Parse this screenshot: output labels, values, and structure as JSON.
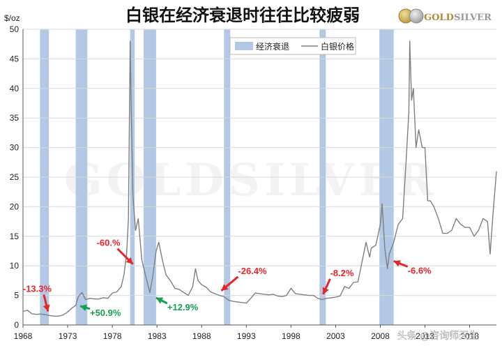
{
  "chart_data": {
    "type": "line",
    "title": "白银在经济衰退时往往比较疲弱",
    "ylabel": "$/oz",
    "xlabel": "",
    "xlim": [
      1968,
      2021
    ],
    "ylim": [
      0,
      50
    ],
    "yticks": [
      0,
      5,
      10,
      15,
      20,
      25,
      30,
      35,
      40,
      45,
      50
    ],
    "xticks": [
      1968,
      1973,
      1978,
      1983,
      1988,
      1993,
      1998,
      2003,
      2008,
      2013,
      2018
    ],
    "grid": "horizontal",
    "legend": {
      "placement": "top-center",
      "entries": [
        {
          "label": "经济衰退",
          "kind": "band",
          "color": "#b3c8e4"
        },
        {
          "label": "白银价格",
          "kind": "line",
          "color": "#7f7f7f"
        }
      ]
    },
    "series": [
      {
        "name": "白银价格",
        "color": "#7f7f7f",
        "x": [
          1968,
          1968.5,
          1969,
          1969.5,
          1970,
          1970.5,
          1971,
          1971.5,
          1972,
          1972.5,
          1973,
          1973.5,
          1973.9,
          1974.2,
          1974.6,
          1975,
          1975.5,
          1976,
          1976.5,
          1977,
          1977.5,
          1978,
          1978.5,
          1979,
          1979.3,
          1979.6,
          1979.8,
          1980.0,
          1980.1,
          1980.3,
          1980.6,
          1980.9,
          1981.3,
          1981.7,
          1982.2,
          1982.5,
          1982.9,
          1983.2,
          1983.6,
          1984,
          1984.5,
          1985,
          1985.5,
          1986,
          1986.5,
          1987,
          1987.3,
          1987.6,
          1988,
          1988.5,
          1989,
          1989.5,
          1990,
          1990.5,
          1991,
          1991.5,
          1992,
          1992.5,
          1993,
          1993.5,
          1994,
          1994.5,
          1995,
          1995.5,
          1996,
          1996.5,
          1997,
          1997.5,
          1998,
          1998.5,
          1999,
          1999.5,
          2000,
          2000.5,
          2001,
          2001.5,
          2002,
          2002.5,
          2003,
          2003.5,
          2004,
          2004.5,
          2005,
          2005.5,
          2006,
          2006.4,
          2006.8,
          2007,
          2007.5,
          2008,
          2008.2,
          2008.5,
          2008.8,
          2009,
          2009.5,
          2010,
          2010.5,
          2010.9,
          2011.2,
          2011.3,
          2011.5,
          2011.7,
          2012,
          2012.3,
          2012.7,
          2013,
          2013.3,
          2013.6,
          2014,
          2014.5,
          2015,
          2015.5,
          2016,
          2016.5,
          2017,
          2017.5,
          2018,
          2018.5,
          2019,
          2019.5,
          2020,
          2020.3,
          2020.6,
          2020.9,
          2021
        ],
        "values": [
          2.3,
          2.5,
          1.9,
          1.8,
          1.85,
          1.75,
          1.6,
          1.5,
          1.5,
          1.7,
          2.2,
          2.9,
          3.3,
          4.8,
          5.5,
          4.3,
          4.5,
          4.4,
          4.4,
          4.6,
          4.5,
          5.4,
          5.6,
          6.5,
          8.5,
          12,
          18,
          48,
          38,
          22,
          16,
          18,
          11,
          8.5,
          5.5,
          8,
          12.5,
          14,
          11,
          8.5,
          7.5,
          6.2,
          6.0,
          5.5,
          5.0,
          6.5,
          9.5,
          7.5,
          6.8,
          6.4,
          5.6,
          5.3,
          5.0,
          4.8,
          4.2,
          4.0,
          3.9,
          3.8,
          3.7,
          4.5,
          5.4,
          5.3,
          5.2,
          5.1,
          5.2,
          4.9,
          4.8,
          5.0,
          6.2,
          5.3,
          5.2,
          5.1,
          5.0,
          5.0,
          4.5,
          4.3,
          4.5,
          4.6,
          4.7,
          4.9,
          6.5,
          6.2,
          7.2,
          7.3,
          11,
          14,
          11.5,
          13,
          13.5,
          17,
          20.5,
          13,
          9.5,
          12,
          14,
          17,
          18,
          28,
          36,
          48,
          38,
          40,
          30,
          33,
          30,
          30,
          21,
          21,
          20,
          18,
          15.5,
          15.5,
          16,
          18,
          17,
          16.5,
          16.5,
          15,
          16,
          18,
          17.5,
          12,
          18.5,
          24,
          26
        ]
      }
    ],
    "recessions": [
      [
        1969.9,
        1970.9
      ],
      [
        1973.9,
        1975.2
      ],
      [
        1980.0,
        1980.5
      ],
      [
        1981.5,
        1982.9
      ],
      [
        1990.5,
        1991.2
      ],
      [
        2001.2,
        2001.9
      ],
      [
        2007.9,
        2009.5
      ]
    ],
    "annotations": [
      {
        "text": "-13.3%",
        "color": "#e8262a",
        "x": 1970.8,
        "y": 2.3
      },
      {
        "text": "+50.9%",
        "color": "#15a152",
        "x": 1974.4,
        "y": 3.2
      },
      {
        "text": "-60.%",
        "color": "#e8262a",
        "x": 1980.3,
        "y": 10.3
      },
      {
        "text": "+12.9%",
        "color": "#15a152",
        "x": 1982.9,
        "y": 4.6
      },
      {
        "text": "-26.4%",
        "color": "#e8262a",
        "x": 1990.2,
        "y": 5.8
      },
      {
        "text": "-8.2%",
        "color": "#e8262a",
        "x": 2001.6,
        "y": 5.2
      },
      {
        "text": "-6.6%",
        "color": "#e8262a",
        "x": 2009.5,
        "y": 10.8
      }
    ]
  },
  "brand": {
    "logo_text": "GOLDSILVER",
    "watermark_text": "GOLDSILVER"
  },
  "footer": {
    "credit": "头条 @咨询师天生"
  }
}
